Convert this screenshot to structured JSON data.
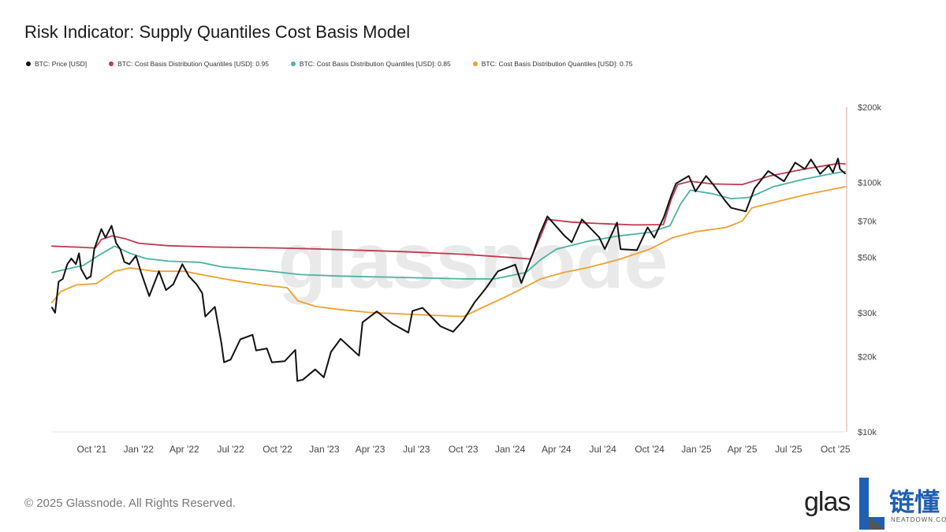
{
  "chart_data": {
    "type": "line",
    "title": "Risk Indicator: Supply Quantiles Cost Basis Model",
    "y_scale": "log",
    "ylim": [
      10000,
      200000
    ],
    "x_range": [
      "2021-07-15",
      "2025-10-20"
    ],
    "y_ticks": [
      {
        "value": 10000,
        "label": "$10k"
      },
      {
        "value": 20000,
        "label": "$20k"
      },
      {
        "value": 30000,
        "label": "$30k"
      },
      {
        "value": 50000,
        "label": "$50k"
      },
      {
        "value": 70000,
        "label": "$70k"
      },
      {
        "value": 100000,
        "label": "$100k"
      },
      {
        "value": 200000,
        "label": "$200k"
      }
    ],
    "x_ticks": [
      {
        "date": "2021-10-01",
        "label": "Oct '21"
      },
      {
        "date": "2022-01-01",
        "label": "Jan '22"
      },
      {
        "date": "2022-04-01",
        "label": "Apr '22"
      },
      {
        "date": "2022-07-01",
        "label": "Jul '22"
      },
      {
        "date": "2022-10-01",
        "label": "Oct '22"
      },
      {
        "date": "2023-01-01",
        "label": "Jan '23"
      },
      {
        "date": "2023-04-01",
        "label": "Apr '23"
      },
      {
        "date": "2023-07-01",
        "label": "Jul '23"
      },
      {
        "date": "2023-10-01",
        "label": "Oct '23"
      },
      {
        "date": "2024-01-01",
        "label": "Jan '24"
      },
      {
        "date": "2024-04-01",
        "label": "Apr '24"
      },
      {
        "date": "2024-07-01",
        "label": "Jul '24"
      },
      {
        "date": "2024-10-01",
        "label": "Oct '24"
      },
      {
        "date": "2025-01-01",
        "label": "Jan '25"
      },
      {
        "date": "2025-04-01",
        "label": "Apr '25"
      },
      {
        "date": "2025-07-01",
        "label": "Jul '25"
      },
      {
        "date": "2025-10-01",
        "label": "Oct '25"
      }
    ],
    "watermark": "glassnode",
    "series": [
      {
        "name": "BTC: Price [USD]",
        "color": "#111111",
        "points": [
          [
            "2021-07-15",
            31500
          ],
          [
            "2021-07-21",
            30000
          ],
          [
            "2021-07-28",
            40000
          ],
          [
            "2021-08-05",
            41000
          ],
          [
            "2021-08-14",
            47000
          ],
          [
            "2021-08-22",
            49500
          ],
          [
            "2021-08-31",
            47000
          ],
          [
            "2021-09-06",
            52000
          ],
          [
            "2021-09-10",
            45000
          ],
          [
            "2021-09-21",
            41000
          ],
          [
            "2021-09-29",
            42000
          ],
          [
            "2021-10-06",
            54000
          ],
          [
            "2021-10-15",
            61000
          ],
          [
            "2021-10-20",
            65000
          ],
          [
            "2021-10-28",
            60000
          ],
          [
            "2021-11-09",
            67000
          ],
          [
            "2021-11-18",
            57000
          ],
          [
            "2021-11-26",
            54000
          ],
          [
            "2021-12-04",
            48000
          ],
          [
            "2021-12-14",
            47000
          ],
          [
            "2021-12-27",
            50800
          ],
          [
            "2022-01-06",
            43500
          ],
          [
            "2022-01-22",
            35000
          ],
          [
            "2022-02-10",
            44000
          ],
          [
            "2022-02-24",
            37000
          ],
          [
            "2022-03-10",
            39000
          ],
          [
            "2022-03-28",
            47000
          ],
          [
            "2022-04-10",
            42000
          ],
          [
            "2022-04-25",
            39000
          ],
          [
            "2022-05-06",
            36000
          ],
          [
            "2022-05-12",
            29000
          ],
          [
            "2022-05-31",
            31700
          ],
          [
            "2022-06-13",
            22500
          ],
          [
            "2022-06-18",
            19000
          ],
          [
            "2022-07-01",
            19500
          ],
          [
            "2022-07-20",
            23500
          ],
          [
            "2022-08-13",
            24500
          ],
          [
            "2022-08-20",
            21200
          ],
          [
            "2022-09-10",
            21600
          ],
          [
            "2022-09-20",
            19000
          ],
          [
            "2022-10-15",
            19200
          ],
          [
            "2022-11-05",
            21300
          ],
          [
            "2022-11-09",
            16000
          ],
          [
            "2022-11-20",
            16200
          ],
          [
            "2022-12-14",
            17800
          ],
          [
            "2022-12-31",
            16550
          ],
          [
            "2023-01-14",
            20900
          ],
          [
            "2023-02-02",
            23600
          ],
          [
            "2023-03-10",
            20200
          ],
          [
            "2023-03-17",
            27500
          ],
          [
            "2023-04-14",
            30400
          ],
          [
            "2023-05-15",
            27100
          ],
          [
            "2023-06-15",
            25000
          ],
          [
            "2023-06-23",
            30500
          ],
          [
            "2023-07-13",
            31400
          ],
          [
            "2023-08-17",
            26500
          ],
          [
            "2023-09-11",
            25200
          ],
          [
            "2023-10-01",
            28000
          ],
          [
            "2023-10-23",
            33000
          ],
          [
            "2023-11-15",
            37800
          ],
          [
            "2023-12-08",
            44000
          ],
          [
            "2024-01-11",
            46800
          ],
          [
            "2024-01-23",
            39500
          ],
          [
            "2024-02-15",
            52000
          ],
          [
            "2024-02-28",
            62000
          ],
          [
            "2024-03-14",
            73000
          ],
          [
            "2024-04-17",
            61000
          ],
          [
            "2024-05-01",
            57500
          ],
          [
            "2024-05-21",
            71000
          ],
          [
            "2024-06-24",
            60200
          ],
          [
            "2024-07-05",
            54000
          ],
          [
            "2024-07-29",
            69000
          ],
          [
            "2024-08-05",
            54000
          ],
          [
            "2024-09-06",
            53500
          ],
          [
            "2024-09-27",
            66000
          ],
          [
            "2024-10-10",
            60000
          ],
          [
            "2024-10-29",
            72500
          ],
          [
            "2024-11-12",
            88000
          ],
          [
            "2024-11-22",
            99000
          ],
          [
            "2024-12-17",
            106000
          ],
          [
            "2024-12-30",
            92000
          ],
          [
            "2025-01-20",
            106000
          ],
          [
            "2025-02-03",
            98000
          ],
          [
            "2025-02-27",
            84000
          ],
          [
            "2025-03-10",
            79000
          ],
          [
            "2025-04-08",
            76500
          ],
          [
            "2025-04-25",
            94500
          ],
          [
            "2025-05-22",
            111000
          ],
          [
            "2025-06-22",
            101000
          ],
          [
            "2025-07-14",
            120000
          ],
          [
            "2025-08-02",
            113000
          ],
          [
            "2025-08-14",
            123500
          ],
          [
            "2025-09-01",
            108000
          ],
          [
            "2025-09-18",
            117000
          ],
          [
            "2025-09-26",
            109500
          ],
          [
            "2025-10-06",
            124500
          ],
          [
            "2025-10-10",
            113000
          ],
          [
            "2025-10-20",
            108500
          ]
        ]
      },
      {
        "name": "BTC: Cost Basis Distribution Quantiles [USD]: 0.95",
        "color": "#c0394f",
        "points": [
          [
            "2021-07-15",
            55500
          ],
          [
            "2021-08-31",
            55000
          ],
          [
            "2021-10-08",
            54600
          ],
          [
            "2021-10-20",
            59000
          ],
          [
            "2021-11-10",
            61000
          ],
          [
            "2021-12-05",
            59500
          ],
          [
            "2022-01-01",
            57000
          ],
          [
            "2022-03-01",
            55700
          ],
          [
            "2022-06-01",
            55000
          ],
          [
            "2022-10-01",
            54600
          ],
          [
            "2023-01-01",
            54000
          ],
          [
            "2023-06-01",
            52800
          ],
          [
            "2023-10-01",
            51500
          ],
          [
            "2024-01-01",
            50000
          ],
          [
            "2024-02-10",
            49300
          ],
          [
            "2024-03-01",
            61000
          ],
          [
            "2024-03-14",
            71000
          ],
          [
            "2024-05-01",
            69300
          ],
          [
            "2024-07-01",
            68300
          ],
          [
            "2024-09-01",
            67500
          ],
          [
            "2024-10-28",
            67700
          ],
          [
            "2024-11-12",
            85000
          ],
          [
            "2024-11-25",
            98000
          ],
          [
            "2024-12-20",
            101000
          ],
          [
            "2025-02-01",
            98500
          ],
          [
            "2025-04-01",
            98000
          ],
          [
            "2025-05-25",
            106000
          ],
          [
            "2025-08-01",
            113000
          ],
          [
            "2025-09-15",
            117000
          ],
          [
            "2025-10-08",
            119000
          ],
          [
            "2025-10-20",
            118500
          ]
        ]
      },
      {
        "name": "BTC: Cost Basis Distribution Quantiles [USD]: 0.85",
        "color": "#4bb3a2",
        "points": [
          [
            "2021-07-15",
            43500
          ],
          [
            "2021-08-15",
            45000
          ],
          [
            "2021-09-15",
            46500
          ],
          [
            "2021-10-15",
            51000
          ],
          [
            "2021-11-15",
            55500
          ],
          [
            "2021-12-15",
            52000
          ],
          [
            "2022-01-15",
            49500
          ],
          [
            "2022-03-01",
            48300
          ],
          [
            "2022-05-01",
            47800
          ],
          [
            "2022-06-15",
            45800
          ],
          [
            "2022-09-01",
            44400
          ],
          [
            "2022-11-15",
            42700
          ],
          [
            "2023-02-01",
            42100
          ],
          [
            "2023-06-01",
            41600
          ],
          [
            "2023-10-01",
            41000
          ],
          [
            "2023-12-01",
            41000
          ],
          [
            "2024-02-01",
            43500
          ],
          [
            "2024-03-01",
            49000
          ],
          [
            "2024-04-01",
            54000
          ],
          [
            "2024-06-01",
            58000
          ],
          [
            "2024-08-01",
            61000
          ],
          [
            "2024-10-01",
            63000
          ],
          [
            "2024-11-10",
            67000
          ],
          [
            "2024-12-01",
            82000
          ],
          [
            "2024-12-20",
            93000
          ],
          [
            "2025-02-01",
            90000
          ],
          [
            "2025-03-10",
            86000
          ],
          [
            "2025-04-15",
            87000
          ],
          [
            "2025-06-01",
            96000
          ],
          [
            "2025-08-01",
            103000
          ],
          [
            "2025-10-01",
            109000
          ],
          [
            "2025-10-20",
            110500
          ]
        ]
      },
      {
        "name": "BTC: Cost Basis Distribution Quantiles [USD]: 0.75",
        "color": "#f0a030",
        "points": [
          [
            "2021-07-15",
            33000
          ],
          [
            "2021-08-01",
            36500
          ],
          [
            "2021-09-01",
            38800
          ],
          [
            "2021-10-10",
            39300
          ],
          [
            "2021-11-15",
            44000
          ],
          [
            "2021-12-15",
            45400
          ],
          [
            "2022-02-01",
            44000
          ],
          [
            "2022-04-01",
            44000
          ],
          [
            "2022-05-15",
            42300
          ],
          [
            "2022-07-01",
            40600
          ],
          [
            "2022-09-01",
            38800
          ],
          [
            "2022-10-20",
            37800
          ],
          [
            "2022-11-10",
            33500
          ],
          [
            "2022-12-15",
            31800
          ],
          [
            "2023-02-01",
            30900
          ],
          [
            "2023-04-01",
            30100
          ],
          [
            "2023-07-01",
            29500
          ],
          [
            "2023-10-01",
            29000
          ],
          [
            "2023-11-15",
            32000
          ],
          [
            "2024-01-01",
            35500
          ],
          [
            "2024-03-01",
            41000
          ],
          [
            "2024-04-15",
            43500
          ],
          [
            "2024-06-01",
            45500
          ],
          [
            "2024-08-01",
            49000
          ],
          [
            "2024-10-01",
            54000
          ],
          [
            "2024-11-15",
            60000
          ],
          [
            "2025-01-01",
            63500
          ],
          [
            "2025-03-01",
            66000
          ],
          [
            "2025-04-01",
            70000
          ],
          [
            "2025-04-20",
            79000
          ],
          [
            "2025-06-01",
            83000
          ],
          [
            "2025-08-01",
            89000
          ],
          [
            "2025-10-20",
            96000
          ]
        ]
      }
    ]
  },
  "footer": {
    "copyright": "© 2025 Glassnode. All Rights Reserved.",
    "brand": "glas",
    "partner_cn": "链懂",
    "partner_en": "NEATDOWN.COM"
  },
  "colors": {
    "axis_right": "#e8a0a8",
    "axis_label": "#444444",
    "watermark": "#e4e4e4",
    "partner_blue": "#1e5fb3"
  }
}
